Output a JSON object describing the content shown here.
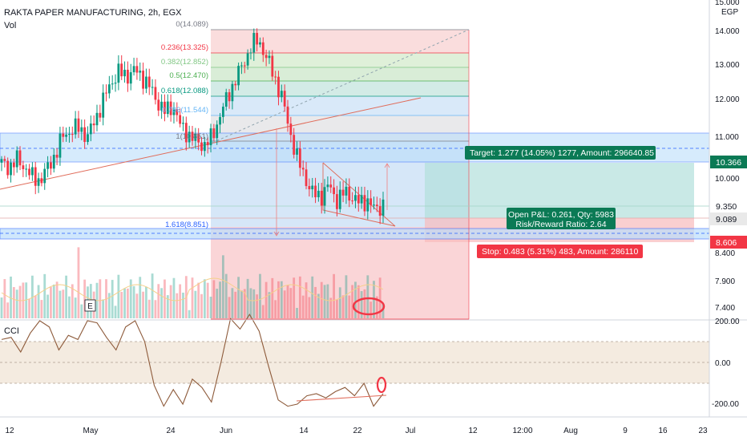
{
  "header": {
    "title": "RAKTA PAPER MANUFACTURING, 2h, EGX",
    "volume_label": "Vol"
  },
  "price_axis": {
    "unit": "EGP",
    "ticks": [
      "15.000",
      "14.000",
      "13.000",
      "12.000",
      "11.000",
      "10.000",
      "8.400",
      "7.900",
      "7.400"
    ],
    "markers": [
      {
        "label": "10.366",
        "color": "#0b7a55"
      },
      {
        "label": "9.350",
        "color": "#ffffff"
      },
      {
        "label": "9.089",
        "color": "#e9e9e9"
      },
      {
        "label": "8.606",
        "color": "#f23645"
      }
    ]
  },
  "fib_levels": [
    {
      "label": "0(14.089)",
      "color": "#787b86"
    },
    {
      "label": "0.236(13.325)",
      "color": "#f23645"
    },
    {
      "label": "0.382(12.852)",
      "color": "#81c784"
    },
    {
      "label": "0.5(12.470)",
      "color": "#4caf50"
    },
    {
      "label": "0.618(12.088)",
      "color": "#089981"
    },
    {
      "label": "0.786(11.544)",
      "color": "#64b5f6"
    },
    {
      "label": "1(10.851)",
      "color": "#787b86"
    },
    {
      "label": "1.618(8.851)",
      "color": "#2962ff"
    }
  ],
  "position_tool": {
    "target_label": "Target: 1.277 (14.05%) 1277, Amount: 296640.85",
    "open_label_1": "Open P&L: 0.261, Qty: 5983",
    "open_label_2": "Risk/Reward Ratio: 2.64",
    "stop_label": "Stop: 0.483 (5.31%) 483, Amount: 286110"
  },
  "event_marker": "E",
  "cci": {
    "label": "CCI",
    "ticks": [
      "200.00",
      "0.00",
      "-200.00"
    ]
  },
  "time_axis": [
    "12",
    "May",
    "24",
    "Jun",
    "14",
    "22",
    "Jul",
    "12",
    "12:00",
    "Aug",
    "9",
    "16",
    "23"
  ],
  "chart_data": {
    "type": "candlestick",
    "symbol": "RAKTA PAPER MANUFACTURING",
    "interval": "2h",
    "exchange": "EGX",
    "y_unit": "EGP",
    "price_close_path": [
      10.4,
      10.3,
      10.5,
      10.3,
      10.0,
      9.95,
      10.3,
      10.7,
      11.2,
      11.3,
      11.4,
      11.1,
      11.6,
      12.1,
      12.6,
      12.9,
      12.8,
      12.95,
      12.8,
      12.5,
      12.1,
      11.8,
      12.0,
      11.4,
      11.2,
      11.0,
      10.9,
      11.1,
      11.7,
      12.2,
      12.7,
      13.1,
      13.6,
      13.8,
      13.3,
      12.8,
      12.2,
      11.3,
      10.5,
      10.0,
      9.55,
      9.5,
      9.8,
      9.4,
      9.6,
      9.5,
      9.3,
      9.4,
      9.1,
      9.3
    ],
    "ylim": [
      7.2,
      15.0
    ],
    "cci_path": [
      110,
      120,
      50,
      140,
      200,
      170,
      60,
      130,
      110,
      200,
      190,
      120,
      60,
      170,
      200,
      100,
      -110,
      -210,
      -130,
      -200,
      -80,
      -120,
      -190,
      0,
      210,
      160,
      230,
      150,
      -20,
      -180,
      -210,
      -200,
      -160,
      -150,
      -170,
      -140,
      -120,
      -160,
      -100,
      -210,
      -150
    ],
    "cci_ylim": [
      -230,
      230
    ]
  },
  "colors": {
    "up": "#089981",
    "down": "#f23645",
    "target_zone": "#b2dfdb",
    "stop_zone": "#f8bbbc",
    "support_band": "#bbdefb"
  }
}
